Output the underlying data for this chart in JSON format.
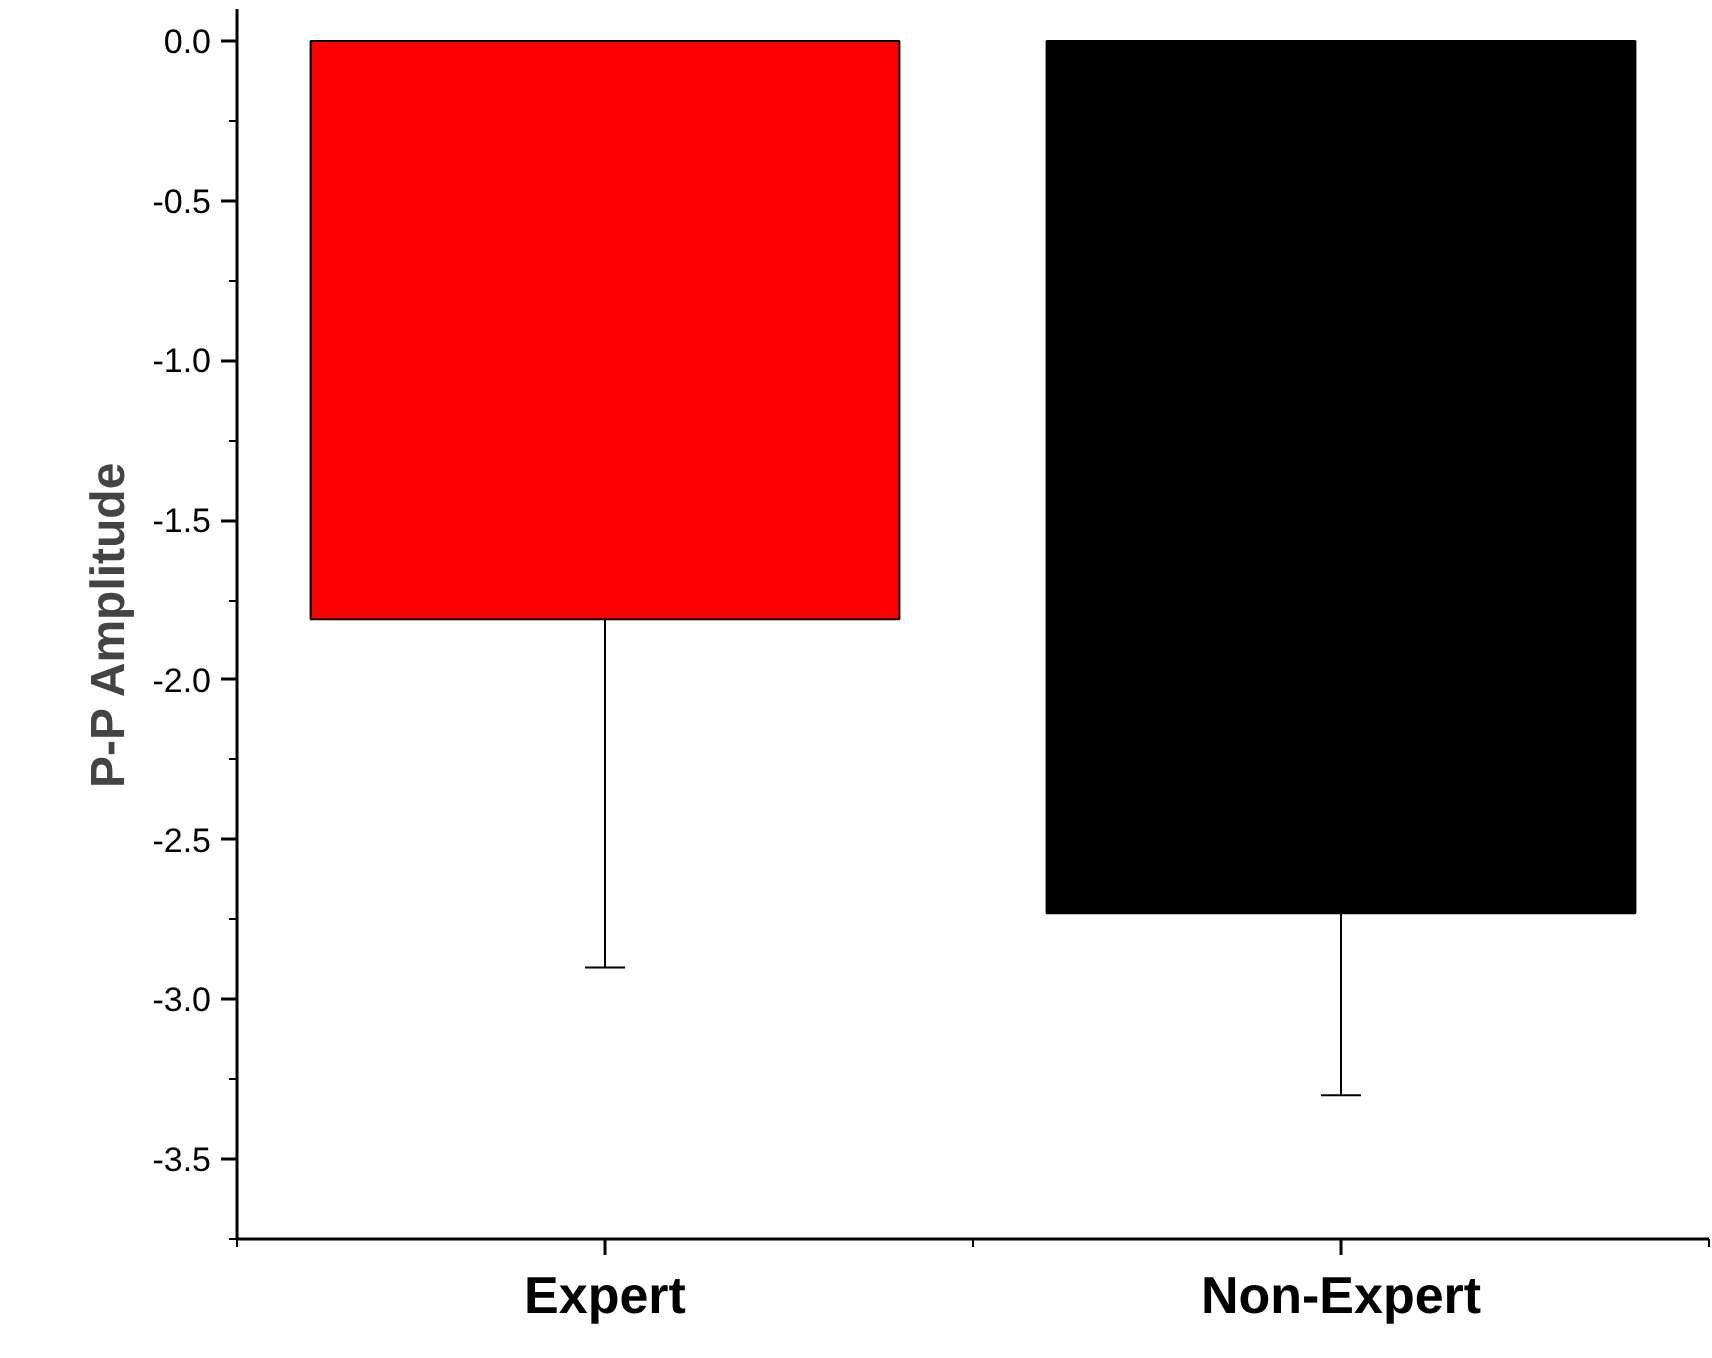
{
  "chart_data": {
    "type": "bar",
    "ylabel": "P-P Amplitude",
    "categories": [
      "Expert",
      "Non-Expert"
    ],
    "values": [
      -1.81,
      -2.73
    ],
    "colors": [
      "#ff0000",
      "#000000"
    ],
    "errors": [
      1.09,
      0.57
    ],
    "ylim": [
      -3.75,
      0.1
    ],
    "yticks": [
      {
        "value": 0,
        "label": "0.0"
      },
      {
        "value": -0.5,
        "label": "-0.5"
      },
      {
        "value": -1,
        "label": "-1.0"
      },
      {
        "value": -1.5,
        "label": "-1.5"
      },
      {
        "value": -2,
        "label": "-2.0"
      },
      {
        "value": -2.5,
        "label": "-2.5"
      },
      {
        "value": -3,
        "label": "-3.0"
      },
      {
        "value": -3.5,
        "label": "-3.5"
      }
    ],
    "grid": false
  }
}
